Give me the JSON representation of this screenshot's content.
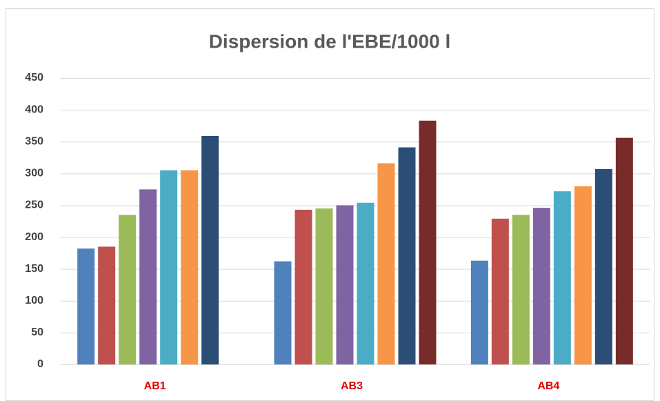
{
  "chart_data": {
    "type": "bar",
    "title": "Dispersion de l'EBE/1000 l",
    "categories": [
      "AB1",
      "AB3",
      "AB4"
    ],
    "series": [
      {
        "color": "#4f81bd",
        "values": [
          182,
          162,
          163
        ]
      },
      {
        "color": "#c0504d",
        "values": [
          185,
          243,
          229
        ]
      },
      {
        "color": "#9bbb59",
        "values": [
          235,
          245,
          235
        ]
      },
      {
        "color": "#8064a2",
        "values": [
          275,
          250,
          246
        ]
      },
      {
        "color": "#4bacc6",
        "values": [
          305,
          254,
          272
        ]
      },
      {
        "color": "#f79646",
        "values": [
          305,
          316,
          280
        ]
      },
      {
        "color": "#2c4d75",
        "values": [
          359,
          341,
          307
        ]
      },
      {
        "color": "#772c2a",
        "values": [
          null,
          383,
          356
        ]
      }
    ],
    "ylim": [
      0,
      450
    ],
    "yticks": [
      0,
      50,
      100,
      150,
      200,
      250,
      300,
      350,
      400,
      450
    ],
    "grid": true
  }
}
